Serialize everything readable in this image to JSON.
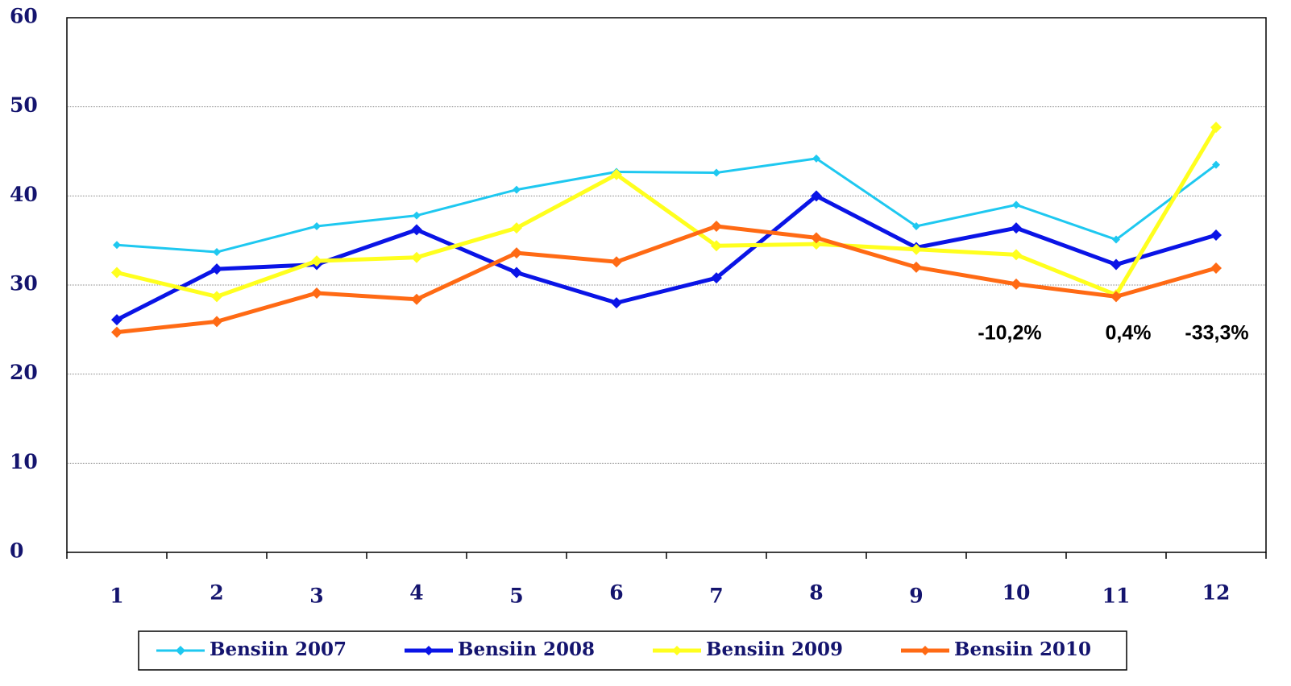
{
  "chart_data": {
    "type": "line",
    "categories": [
      "1",
      "2",
      "3",
      "4",
      "5",
      "6",
      "7",
      "8",
      "9",
      "10",
      "11",
      "12"
    ],
    "series": [
      {
        "name": "Bensiin 2007",
        "color": "#1ec8f0",
        "values": [
          34.5,
          33.7,
          36.6,
          37.8,
          40.7,
          42.7,
          42.6,
          44.2,
          36.6,
          39.0,
          35.1,
          43.5
        ]
      },
      {
        "name": "Bensiin 2008",
        "color": "#0a14e6",
        "values": [
          26.1,
          31.8,
          32.3,
          36.2,
          31.4,
          28.0,
          30.8,
          40.0,
          34.2,
          36.4,
          32.3,
          35.6
        ]
      },
      {
        "name": "Bensiin 2009",
        "color": "#ffff1e",
        "values": [
          31.4,
          28.7,
          32.7,
          33.1,
          36.4,
          42.4,
          34.4,
          34.6,
          34.0,
          33.4,
          28.9,
          47.7
        ]
      },
      {
        "name": "Bensiin 2010",
        "color": "#ff6a14",
        "values": [
          24.7,
          25.9,
          29.1,
          28.4,
          33.6,
          32.6,
          36.6,
          35.3,
          32.0,
          30.1,
          28.7,
          31.9
        ]
      }
    ],
    "annotations": [
      "-10,2%",
      "0,4%",
      "-33,3%"
    ],
    "ylim": [
      0,
      60
    ],
    "yticks": [
      0,
      10,
      20,
      30,
      40,
      50,
      60
    ],
    "grid": true
  }
}
